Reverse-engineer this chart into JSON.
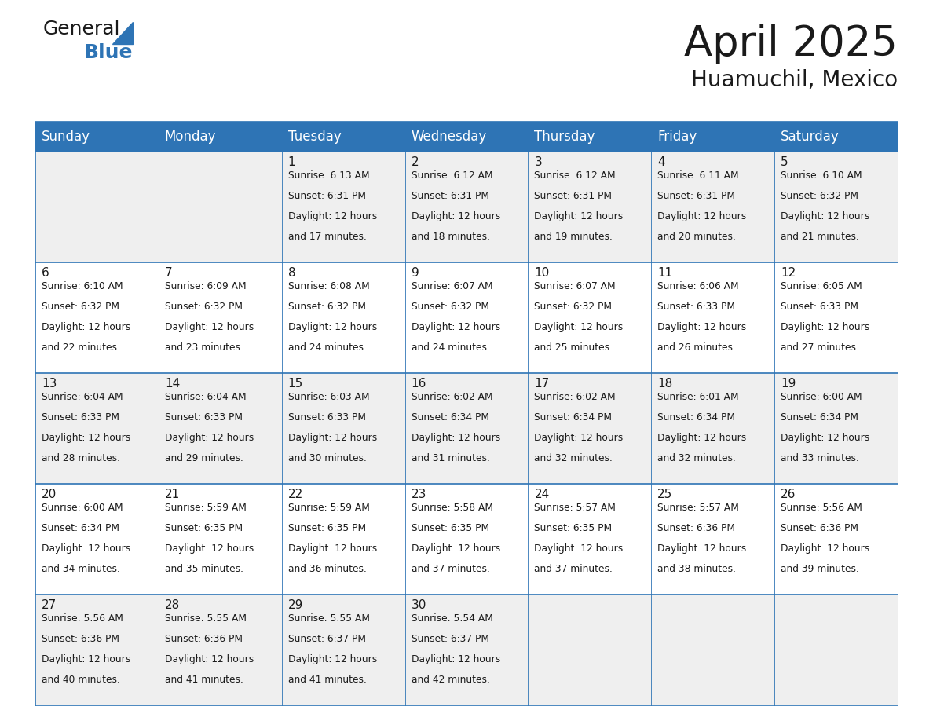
{
  "title": "April 2025",
  "subtitle": "Huamuchil, Mexico",
  "days_of_week": [
    "Sunday",
    "Monday",
    "Tuesday",
    "Wednesday",
    "Thursday",
    "Friday",
    "Saturday"
  ],
  "header_bg": "#2E74B5",
  "header_text": "#FFFFFF",
  "row_bg_even": "#EFEFEF",
  "row_bg_odd": "#FFFFFF",
  "cell_border": "#2E74B5",
  "title_color": "#1a1a1a",
  "subtitle_color": "#1a1a1a",
  "day_number_color": "#1a1a1a",
  "detail_color": "#1a1a1a",
  "logo_general_color": "#1a1a1a",
  "logo_blue_color": "#2E74B5",
  "logo_triangle_color": "#2E74B5",
  "calendar_data": [
    [
      {
        "day": "",
        "sunrise": "",
        "sunset": "",
        "daylight_h": "",
        "daylight_m": ""
      },
      {
        "day": "",
        "sunrise": "",
        "sunset": "",
        "daylight_h": "",
        "daylight_m": ""
      },
      {
        "day": "1",
        "sunrise": "6:13 AM",
        "sunset": "6:31 PM",
        "daylight_h": "Daylight: 12 hours",
        "daylight_m": "and 17 minutes."
      },
      {
        "day": "2",
        "sunrise": "6:12 AM",
        "sunset": "6:31 PM",
        "daylight_h": "Daylight: 12 hours",
        "daylight_m": "and 18 minutes."
      },
      {
        "day": "3",
        "sunrise": "6:12 AM",
        "sunset": "6:31 PM",
        "daylight_h": "Daylight: 12 hours",
        "daylight_m": "and 19 minutes."
      },
      {
        "day": "4",
        "sunrise": "6:11 AM",
        "sunset": "6:31 PM",
        "daylight_h": "Daylight: 12 hours",
        "daylight_m": "and 20 minutes."
      },
      {
        "day": "5",
        "sunrise": "6:10 AM",
        "sunset": "6:32 PM",
        "daylight_h": "Daylight: 12 hours",
        "daylight_m": "and 21 minutes."
      }
    ],
    [
      {
        "day": "6",
        "sunrise": "6:10 AM",
        "sunset": "6:32 PM",
        "daylight_h": "Daylight: 12 hours",
        "daylight_m": "and 22 minutes."
      },
      {
        "day": "7",
        "sunrise": "6:09 AM",
        "sunset": "6:32 PM",
        "daylight_h": "Daylight: 12 hours",
        "daylight_m": "and 23 minutes."
      },
      {
        "day": "8",
        "sunrise": "6:08 AM",
        "sunset": "6:32 PM",
        "daylight_h": "Daylight: 12 hours",
        "daylight_m": "and 24 minutes."
      },
      {
        "day": "9",
        "sunrise": "6:07 AM",
        "sunset": "6:32 PM",
        "daylight_h": "Daylight: 12 hours",
        "daylight_m": "and 24 minutes."
      },
      {
        "day": "10",
        "sunrise": "6:07 AM",
        "sunset": "6:32 PM",
        "daylight_h": "Daylight: 12 hours",
        "daylight_m": "and 25 minutes."
      },
      {
        "day": "11",
        "sunrise": "6:06 AM",
        "sunset": "6:33 PM",
        "daylight_h": "Daylight: 12 hours",
        "daylight_m": "and 26 minutes."
      },
      {
        "day": "12",
        "sunrise": "6:05 AM",
        "sunset": "6:33 PM",
        "daylight_h": "Daylight: 12 hours",
        "daylight_m": "and 27 minutes."
      }
    ],
    [
      {
        "day": "13",
        "sunrise": "6:04 AM",
        "sunset": "6:33 PM",
        "daylight_h": "Daylight: 12 hours",
        "daylight_m": "and 28 minutes."
      },
      {
        "day": "14",
        "sunrise": "6:04 AM",
        "sunset": "6:33 PM",
        "daylight_h": "Daylight: 12 hours",
        "daylight_m": "and 29 minutes."
      },
      {
        "day": "15",
        "sunrise": "6:03 AM",
        "sunset": "6:33 PM",
        "daylight_h": "Daylight: 12 hours",
        "daylight_m": "and 30 minutes."
      },
      {
        "day": "16",
        "sunrise": "6:02 AM",
        "sunset": "6:34 PM",
        "daylight_h": "Daylight: 12 hours",
        "daylight_m": "and 31 minutes."
      },
      {
        "day": "17",
        "sunrise": "6:02 AM",
        "sunset": "6:34 PM",
        "daylight_h": "Daylight: 12 hours",
        "daylight_m": "and 32 minutes."
      },
      {
        "day": "18",
        "sunrise": "6:01 AM",
        "sunset": "6:34 PM",
        "daylight_h": "Daylight: 12 hours",
        "daylight_m": "and 32 minutes."
      },
      {
        "day": "19",
        "sunrise": "6:00 AM",
        "sunset": "6:34 PM",
        "daylight_h": "Daylight: 12 hours",
        "daylight_m": "and 33 minutes."
      }
    ],
    [
      {
        "day": "20",
        "sunrise": "6:00 AM",
        "sunset": "6:34 PM",
        "daylight_h": "Daylight: 12 hours",
        "daylight_m": "and 34 minutes."
      },
      {
        "day": "21",
        "sunrise": "5:59 AM",
        "sunset": "6:35 PM",
        "daylight_h": "Daylight: 12 hours",
        "daylight_m": "and 35 minutes."
      },
      {
        "day": "22",
        "sunrise": "5:59 AM",
        "sunset": "6:35 PM",
        "daylight_h": "Daylight: 12 hours",
        "daylight_m": "and 36 minutes."
      },
      {
        "day": "23",
        "sunrise": "5:58 AM",
        "sunset": "6:35 PM",
        "daylight_h": "Daylight: 12 hours",
        "daylight_m": "and 37 minutes."
      },
      {
        "day": "24",
        "sunrise": "5:57 AM",
        "sunset": "6:35 PM",
        "daylight_h": "Daylight: 12 hours",
        "daylight_m": "and 37 minutes."
      },
      {
        "day": "25",
        "sunrise": "5:57 AM",
        "sunset": "6:36 PM",
        "daylight_h": "Daylight: 12 hours",
        "daylight_m": "and 38 minutes."
      },
      {
        "day": "26",
        "sunrise": "5:56 AM",
        "sunset": "6:36 PM",
        "daylight_h": "Daylight: 12 hours",
        "daylight_m": "and 39 minutes."
      }
    ],
    [
      {
        "day": "27",
        "sunrise": "5:56 AM",
        "sunset": "6:36 PM",
        "daylight_h": "Daylight: 12 hours",
        "daylight_m": "and 40 minutes."
      },
      {
        "day": "28",
        "sunrise": "5:55 AM",
        "sunset": "6:36 PM",
        "daylight_h": "Daylight: 12 hours",
        "daylight_m": "and 41 minutes."
      },
      {
        "day": "29",
        "sunrise": "5:55 AM",
        "sunset": "6:37 PM",
        "daylight_h": "Daylight: 12 hours",
        "daylight_m": "and 41 minutes."
      },
      {
        "day": "30",
        "sunrise": "5:54 AM",
        "sunset": "6:37 PM",
        "daylight_h": "Daylight: 12 hours",
        "daylight_m": "and 42 minutes."
      },
      {
        "day": "",
        "sunrise": "",
        "sunset": "",
        "daylight_h": "",
        "daylight_m": ""
      },
      {
        "day": "",
        "sunrise": "",
        "sunset": "",
        "daylight_h": "",
        "daylight_m": ""
      },
      {
        "day": "",
        "sunrise": "",
        "sunset": "",
        "daylight_h": "",
        "daylight_m": ""
      }
    ]
  ]
}
